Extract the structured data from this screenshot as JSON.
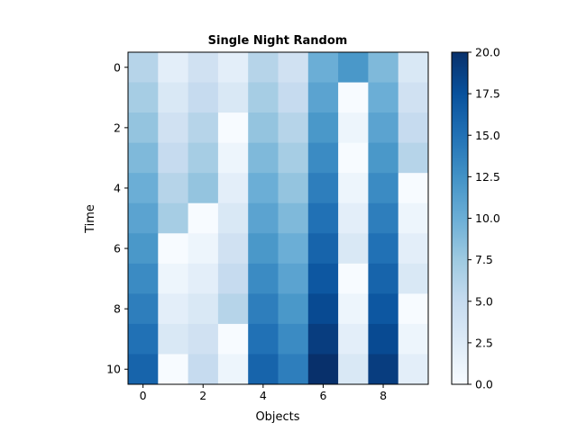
{
  "chart_data": {
    "type": "heatmap",
    "title": "Single Night Random",
    "xlabel": "Objects",
    "ylabel": "Time",
    "colormap": "Blues",
    "colorbar": {
      "min": 0.0,
      "max": 20.0,
      "ticks": [
        0.0,
        2.5,
        5.0,
        7.5,
        10.0,
        12.5,
        15.0,
        17.5,
        20.0
      ],
      "tick_labels": [
        "0.0",
        "2.5",
        "5.0",
        "7.5",
        "10.0",
        "12.5",
        "15.0",
        "17.5",
        "20.0"
      ]
    },
    "x_ticks": [
      0,
      2,
      4,
      6,
      8
    ],
    "y_ticks": [
      0,
      2,
      4,
      6,
      8,
      10
    ],
    "values": [
      [
        6.0,
        2.0,
        4.0,
        2.0,
        6.0,
        4.0,
        10.0,
        12.0,
        9.0,
        3.0
      ],
      [
        7.0,
        3.0,
        5.0,
        3.0,
        7.0,
        5.0,
        11.0,
        0.0,
        10.0,
        4.0
      ],
      [
        8.0,
        4.0,
        6.0,
        0.0,
        8.0,
        6.0,
        12.0,
        1.0,
        11.0,
        5.0
      ],
      [
        9.0,
        5.0,
        7.0,
        1.0,
        9.0,
        7.0,
        13.0,
        0.0,
        12.0,
        6.0
      ],
      [
        10.0,
        6.0,
        8.0,
        2.0,
        10.0,
        8.0,
        14.0,
        1.0,
        13.0,
        0.0
      ],
      [
        11.0,
        7.0,
        0.0,
        3.0,
        11.0,
        9.0,
        15.0,
        2.0,
        14.0,
        1.0
      ],
      [
        12.0,
        0.0,
        1.0,
        4.0,
        12.0,
        10.0,
        16.0,
        3.0,
        15.0,
        2.0
      ],
      [
        13.0,
        1.0,
        2.0,
        5.0,
        13.0,
        11.0,
        17.0,
        0.0,
        16.0,
        3.0
      ],
      [
        14.0,
        2.0,
        3.0,
        6.0,
        14.0,
        12.0,
        18.0,
        1.0,
        17.0,
        0.0
      ],
      [
        15.0,
        3.0,
        4.0,
        0.0,
        15.0,
        13.0,
        19.0,
        2.0,
        18.0,
        1.0
      ],
      [
        16.0,
        0.0,
        5.0,
        1.0,
        16.0,
        14.0,
        20.0,
        3.0,
        19.0,
        2.0
      ]
    ]
  }
}
